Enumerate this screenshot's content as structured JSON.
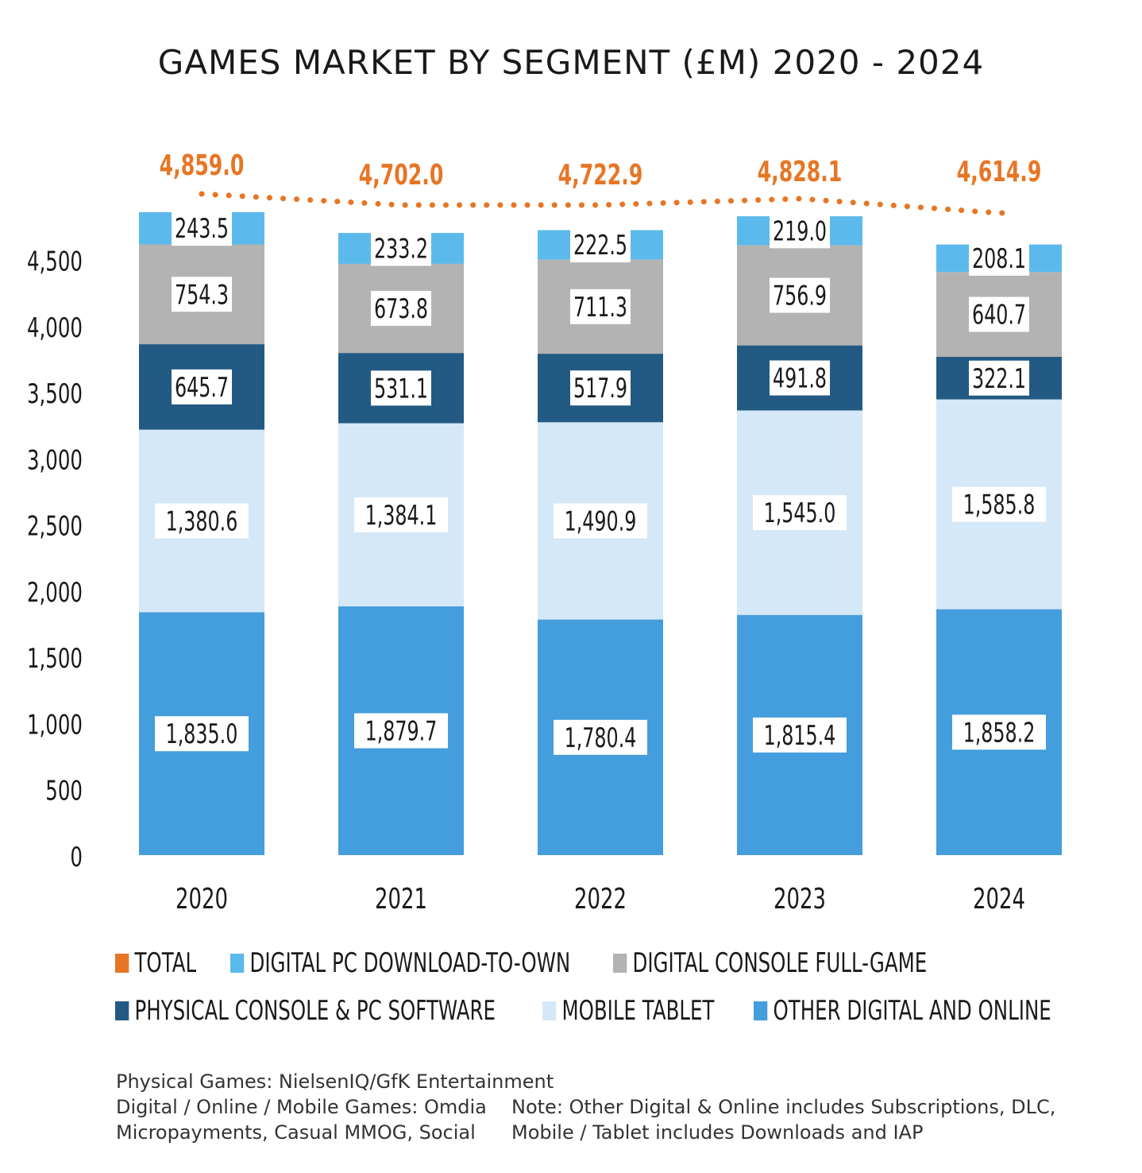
{
  "chart_data": {
    "type": "bar",
    "stacked": true,
    "title": "GAMES MARKET BY SEGMENT (£M) 2020 - 2024",
    "categories": [
      "2020",
      "2021",
      "2022",
      "2023",
      "2024"
    ],
    "ylim": [
      0,
      4800
    ],
    "yticks": [
      0,
      500,
      1000,
      1500,
      2000,
      2500,
      3000,
      3500,
      4000,
      4500
    ],
    "ytick_labels": [
      "0",
      "500",
      "1,000",
      "1,500",
      "2,000",
      "2,500",
      "3,000",
      "3,500",
      "4,000",
      "4,500"
    ],
    "grid": false,
    "series": [
      {
        "name": "OTHER DIGITAL AND ONLINE",
        "color": "#449ddc",
        "values": [
          1835.0,
          1879.7,
          1780.4,
          1815.4,
          1858.2
        ],
        "labels": [
          "1,835.0",
          "1,879.7",
          "1,780.4",
          "1,815.4",
          "1,858.2"
        ]
      },
      {
        "name": "MOBILE TABLET",
        "color": "#d4e8f8",
        "values": [
          1380.6,
          1384.1,
          1490.9,
          1545.0,
          1585.8
        ],
        "labels": [
          "1,380.6",
          "1,384.1",
          "1,490.9",
          "1,545.0",
          "1,585.8"
        ]
      },
      {
        "name": "PHYSICAL CONSOLE & PC SOFTWARE",
        "color": "#235a83",
        "values": [
          645.7,
          531.1,
          517.9,
          491.8,
          322.1
        ],
        "labels": [
          "645.7",
          "531.1",
          "517.9",
          "491.8",
          "322.1"
        ]
      },
      {
        "name": "DIGITAL CONSOLE FULL-GAME",
        "color": "#b3b3b3",
        "values": [
          754.3,
          673.8,
          711.3,
          756.9,
          640.7
        ],
        "labels": [
          "754.3",
          "673.8",
          "711.3",
          "756.9",
          "640.7"
        ]
      },
      {
        "name": "DIGITAL PC DOWNLOAD-TO-OWN",
        "color": "#5cb9ec",
        "values": [
          243.5,
          233.2,
          222.5,
          219.0,
          208.1
        ],
        "labels": [
          "243.5",
          "233.2",
          "222.5",
          "219.0",
          "208.1"
        ]
      }
    ],
    "total": {
      "name": "TOTAL",
      "color": "#e67625",
      "values": [
        4859.0,
        4702.0,
        4722.9,
        4828.1,
        4614.9
      ],
      "labels": [
        "4,859.0",
        "4,702.0",
        "4,722.9",
        "4,828.1",
        "4,614.9"
      ]
    },
    "legend": {
      "placement": "bottom",
      "items": [
        {
          "label": "TOTAL",
          "color": "#e67625"
        },
        {
          "label": "DIGITAL PC DOWNLOAD-TO-OWN",
          "color": "#5cb9ec"
        },
        {
          "label": "DIGITAL CONSOLE FULL-GAME",
          "color": "#b3b3b3"
        },
        {
          "label": "PHYSICAL CONSOLE & PC SOFTWARE",
          "color": "#235a83"
        },
        {
          "label": "MOBILE TABLET",
          "color": "#d4e8f8"
        },
        {
          "label": "OTHER DIGITAL AND ONLINE",
          "color": "#449ddc"
        }
      ]
    }
  },
  "notes": {
    "line1": "Physical Games: NielsenIQ/GfK Entertainment",
    "line2": "Digital / Online / Mobile Games: Omdia",
    "line3": "Micropayments, Casual MMOG, Social",
    "note1": "Note: Other Digital & Online includes Subscriptions, DLC,",
    "note2": "Mobile / Tablet includes Downloads and IAP"
  }
}
